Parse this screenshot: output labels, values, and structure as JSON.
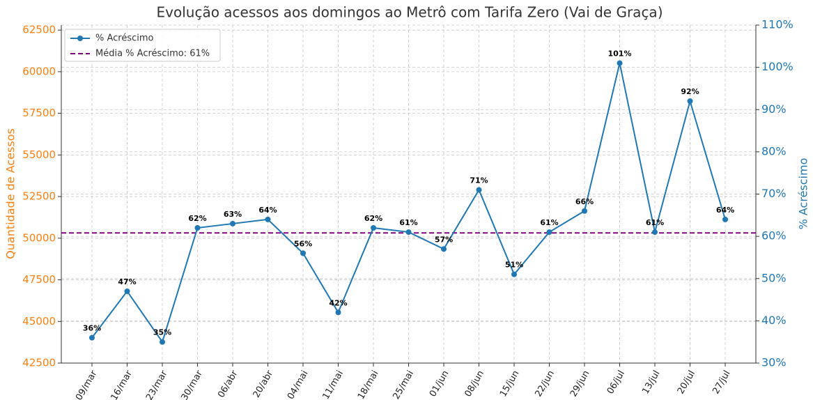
{
  "chart_data": {
    "type": "line",
    "title": "Evolução acessos aos domingos ao Metrô com Tarifa Zero (Vai de Graça)",
    "categories": [
      "09/mar",
      "16/mar",
      "23/mar",
      "30/mar",
      "06/abr",
      "20/abr",
      "04/mai",
      "11/mai",
      "18/mai",
      "25/mai",
      "01/jun",
      "08/jun",
      "15/jun",
      "22/jun",
      "29/jun",
      "06/jul",
      "13/jul",
      "20/jul",
      "27/jul"
    ],
    "ylabel": "Quantidade de Acessos",
    "y2label": "% Acréscimo",
    "ycolor": "#ff7f0e",
    "y2color": "#1f77b4",
    "ylim": [
      42500,
      62800
    ],
    "yticks": [
      42500,
      45000,
      47500,
      50000,
      52500,
      55000,
      57500,
      60000,
      62500
    ],
    "y2lim": [
      30,
      110
    ],
    "y2ticks": [
      {
        "value": 30,
        "label": "30%"
      },
      {
        "value": 40,
        "label": "40%"
      },
      {
        "value": 50,
        "label": "50%"
      },
      {
        "value": 60,
        "label": "60%"
      },
      {
        "value": 70,
        "label": "70%"
      },
      {
        "value": 80,
        "label": "80%"
      },
      {
        "value": 90,
        "label": "90%"
      },
      {
        "value": 100,
        "label": "100%"
      },
      {
        "value": 110,
        "label": "110%"
      }
    ],
    "series": [
      {
        "name": "% Acréscimo",
        "color": "#1f77b4",
        "axis": "y2",
        "values": [
          36,
          47,
          35,
          62,
          63,
          64,
          56,
          42,
          62,
          61,
          57,
          71,
          51,
          61,
          66,
          101,
          61,
          92,
          64
        ],
        "value_labels": [
          "36%",
          "47%",
          "35%",
          "62%",
          "63%",
          "64%",
          "56%",
          "42%",
          "62%",
          "61%",
          "57%",
          "71%",
          "51%",
          "61%",
          "66%",
          "101%",
          "61%",
          "92%",
          "64%"
        ]
      }
    ],
    "mean_line": {
      "name": "Média % Acréscimo: 61%",
      "value": 60.8,
      "color": "#800080",
      "axis": "y2"
    },
    "grid": true,
    "legend": "upper left"
  }
}
